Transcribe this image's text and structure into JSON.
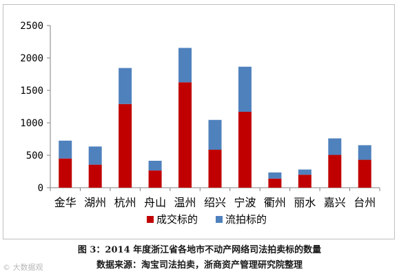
{
  "chart_data": {
    "type": "bar",
    "stacked": true,
    "categories": [
      "金华",
      "湖州",
      "杭州",
      "舟山",
      "温州",
      "绍兴",
      "宁波",
      "衢州",
      "丽水",
      "嘉兴",
      "台州"
    ],
    "series": [
      {
        "name": "成交标的",
        "color": "#c00000",
        "values": [
          450,
          355,
          1290,
          265,
          1625,
          585,
          1170,
          140,
          200,
          505,
          430
        ]
      },
      {
        "name": "流拍标的",
        "color": "#4f81bd",
        "values": [
          275,
          280,
          555,
          150,
          530,
          460,
          695,
          95,
          80,
          255,
          225
        ]
      }
    ],
    "ylim": [
      0,
      2500
    ],
    "yticks": [
      0,
      500,
      1000,
      1500,
      2000,
      2500
    ],
    "grid": false,
    "legend_position": "bottom",
    "xlabel": "",
    "ylabel": ""
  },
  "caption": {
    "line1": "图 3：2014 年度浙江省各地市不动产网络司法拍卖标的数量",
    "line2": "数据来源：淘宝司法拍卖，浙商资产管理研究院整理"
  },
  "watermark": "© 大数据观"
}
